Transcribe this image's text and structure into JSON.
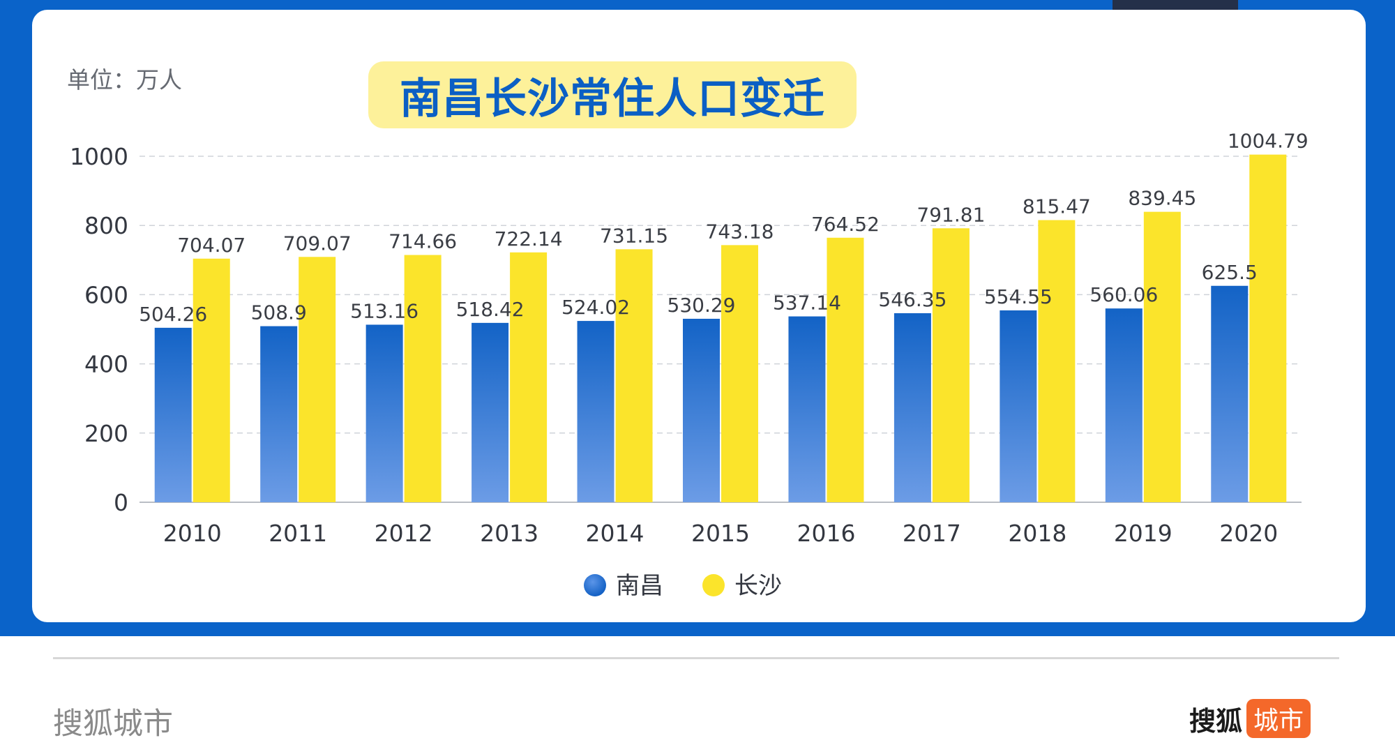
{
  "header": {
    "unit_label": "单位：万人",
    "title": "南昌长沙常住人口变迁"
  },
  "footer": {
    "source": "搜狐城市",
    "logo_text": "搜狐",
    "logo_badge": "城市"
  },
  "colors": {
    "background_blue": "#0a63c9",
    "nanchang_top": "#1565c8",
    "nanchang_bottom": "#6b9be6",
    "changsha": "#fbe42b",
    "title_bg": "#fdf19a",
    "title_text": "#0b5fc4",
    "logo_badge": "#f4682a"
  },
  "chart_data": {
    "type": "bar",
    "title": "南昌长沙常住人口变迁",
    "unit": "单位：万人",
    "categories": [
      "2010",
      "2011",
      "2012",
      "2013",
      "2014",
      "2015",
      "2016",
      "2017",
      "2018",
      "2019",
      "2020"
    ],
    "series": [
      {
        "name": "南昌",
        "values": [
          504.26,
          508.9,
          513.16,
          518.42,
          524.02,
          530.29,
          537.14,
          546.35,
          554.55,
          560.06,
          625.5
        ],
        "labels": [
          "504.26",
          "508.9",
          "513.16",
          "518.42",
          "524.02",
          "530.29",
          "537.14",
          "546.35",
          "554.55",
          "560.06",
          "625.5"
        ]
      },
      {
        "name": "长沙",
        "values": [
          704.07,
          709.07,
          714.66,
          722.14,
          731.15,
          743.18,
          764.52,
          791.81,
          815.47,
          839.45,
          1004.79
        ],
        "labels": [
          "704.07",
          "709.07",
          "714.66",
          "722.14",
          "731.15",
          "743.18",
          "764.52",
          "791.81",
          "815.47",
          "839.45",
          "1004.79"
        ]
      }
    ],
    "ylim": [
      0,
      1000
    ],
    "yticks": [
      "0",
      "200",
      "400",
      "600",
      "800",
      "1000"
    ],
    "grid": true,
    "legend_position": "bottom-center"
  }
}
